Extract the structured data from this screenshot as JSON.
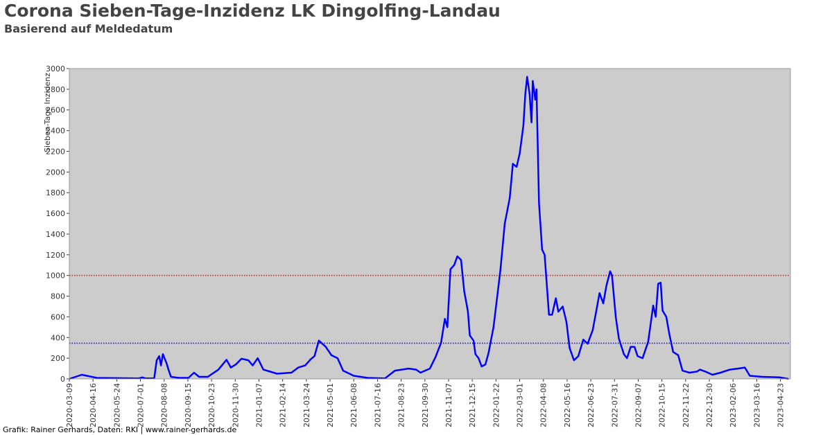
{
  "chart_data": {
    "type": "line",
    "title": "Corona Sieben-Tage-Inzidenz LK Dingolfing-Landau",
    "subtitle": "Basierend auf Meldedatum",
    "y_label": "Sieben-Tage Inzidenz",
    "footer": "Grafik: Rainer Gerhards, Daten: RKI | www.rainer-gerhards.de",
    "x": [
      "2020-03-09",
      "2020-03-29",
      "2020-04-06",
      "2020-04-22",
      "2020-06-28",
      "2020-07-04",
      "2020-07-09",
      "2020-07-23",
      "2020-07-27",
      "2020-07-31",
      "2020-08-03",
      "2020-08-06",
      "2020-08-12",
      "2020-08-15",
      "2020-08-19",
      "2020-09-01",
      "2020-09-16",
      "2020-09-25",
      "2020-10-03",
      "2020-10-17",
      "2020-11-03",
      "2020-11-16",
      "2020-11-23",
      "2020-12-01",
      "2020-12-10",
      "2020-12-21",
      "2020-12-28",
      "2021-01-05",
      "2021-01-14",
      "2021-01-25",
      "2021-02-05",
      "2021-02-28",
      "2021-03-11",
      "2021-03-22",
      "2021-03-31",
      "2021-04-06",
      "2021-04-13",
      "2021-04-24",
      "2021-05-03",
      "2021-05-13",
      "2021-05-22",
      "2021-06-08",
      "2021-06-30",
      "2021-07-28",
      "2021-08-13",
      "2021-08-24",
      "2021-09-04",
      "2021-09-16",
      "2021-09-23",
      "2021-10-08",
      "2021-10-17",
      "2021-10-26",
      "2021-11-01",
      "2021-11-05",
      "2021-11-10",
      "2021-11-16",
      "2021-11-21",
      "2021-11-27",
      "2021-12-02",
      "2021-12-08",
      "2021-12-11",
      "2021-12-17",
      "2021-12-20",
      "2021-12-25",
      "2021-12-30",
      "2022-01-05",
      "2022-01-10",
      "2022-01-18",
      "2022-01-25",
      "2022-01-29",
      "2022-02-05",
      "2022-02-13",
      "2022-02-18",
      "2022-02-24",
      "2022-03-01",
      "2022-03-07",
      "2022-03-10",
      "2022-03-13",
      "2022-03-17",
      "2022-03-20",
      "2022-03-22",
      "2022-03-26",
      "2022-03-28",
      "2022-04-01",
      "2022-04-06",
      "2022-04-10",
      "2022-04-17",
      "2022-04-22",
      "2022-04-28",
      "2022-05-02",
      "2022-05-09",
      "2022-05-15",
      "2022-05-20",
      "2022-05-27",
      "2022-06-03",
      "2022-06-11",
      "2022-06-18",
      "2022-06-26",
      "2022-07-01",
      "2022-07-07",
      "2022-07-13",
      "2022-07-18",
      "2022-07-24",
      "2022-07-27",
      "2022-08-02",
      "2022-08-07",
      "2022-08-15",
      "2022-08-20",
      "2022-08-26",
      "2022-09-01",
      "2022-09-06",
      "2022-09-14",
      "2022-09-23",
      "2022-10-01",
      "2022-10-05",
      "2022-10-09",
      "2022-10-13",
      "2022-10-16",
      "2022-10-22",
      "2022-10-27",
      "2022-11-02",
      "2022-11-10",
      "2022-11-17",
      "2022-11-28",
      "2022-12-10",
      "2022-12-15",
      "2022-12-24",
      "2023-01-04",
      "2023-01-17",
      "2023-02-01",
      "2023-02-14",
      "2023-02-25",
      "2023-03-05",
      "2023-03-25",
      "2023-04-22",
      "2023-05-06"
    ],
    "series": [
      {
        "name": "Sieben-Tage Inzidenz",
        "color": "#0000ff",
        "values": [
          0,
          40,
          30,
          10,
          5,
          15,
          5,
          5,
          180,
          220,
          130,
          240,
          150,
          90,
          20,
          10,
          10,
          60,
          20,
          20,
          90,
          185,
          110,
          140,
          195,
          180,
          130,
          200,
          90,
          70,
          50,
          60,
          110,
          130,
          190,
          220,
          370,
          310,
          230,
          200,
          80,
          30,
          10,
          5,
          80,
          90,
          100,
          90,
          60,
          100,
          210,
          350,
          580,
          500,
          1060,
          1100,
          1185,
          1150,
          850,
          650,
          420,
          370,
          240,
          200,
          120,
          140,
          250,
          500,
          850,
          1050,
          1500,
          1750,
          2080,
          2050,
          2180,
          2450,
          2750,
          2920,
          2750,
          2480,
          2880,
          2700,
          2800,
          1700,
          1250,
          1200,
          620,
          620,
          780,
          650,
          700,
          550,
          300,
          180,
          220,
          380,
          340,
          470,
          630,
          830,
          730,
          900,
          1040,
          1000,
          600,
          390,
          240,
          200,
          310,
          310,
          220,
          200,
          360,
          710,
          600,
          920,
          930,
          660,
          600,
          430,
          260,
          230,
          80,
          60,
          70,
          90,
          70,
          40,
          60,
          90,
          100,
          110,
          30,
          20,
          15,
          0
        ]
      }
    ],
    "reference_lines": [
      {
        "value": 1000,
        "color": "#ff0000"
      },
      {
        "value": 345,
        "color": "#0000ff"
      }
    ],
    "xlim": [
      "2020-03-09",
      "2023-05-09"
    ],
    "xticks": [
      "2020-03-09",
      "2020-04-16",
      "2020-05-24",
      "2020-07-01",
      "2020-08-08",
      "2020-09-15",
      "2020-10-23",
      "2020-11-30",
      "2021-01-07",
      "2021-02-14",
      "2021-03-24",
      "2021-05-01",
      "2021-06-08",
      "2021-07-16",
      "2021-08-23",
      "2021-09-30",
      "2021-11-07",
      "2021-12-15",
      "2022-01-22",
      "2022-03-01",
      "2022-04-08",
      "2022-05-16",
      "2022-06-23",
      "2022-07-31",
      "2022-09-07",
      "2022-10-15",
      "2022-11-22",
      "2022-12-30",
      "2023-02-06",
      "2023-03-16",
      "2023-04-23"
    ],
    "ylim": [
      0,
      3000
    ],
    "yticks": [
      0,
      200,
      400,
      600,
      800,
      1000,
      1200,
      1400,
      1600,
      1800,
      2000,
      2200,
      2400,
      2600,
      2800,
      3000
    ],
    "plot_background": "#cccccc"
  }
}
